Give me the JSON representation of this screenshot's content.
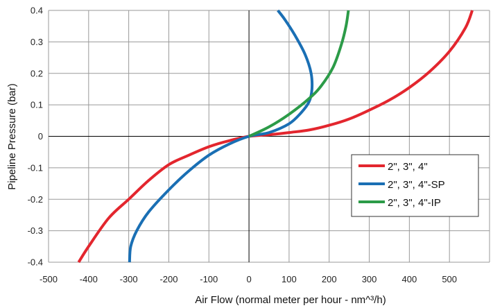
{
  "chart_data": {
    "type": "line",
    "title": "",
    "xlabel": "Air Flow (normal meter per hour - nm^³/h)",
    "ylabel": "Pipeline Pressure (bar)",
    "xlim": [
      -500,
      600
    ],
    "ylim": [
      -0.4,
      0.4
    ],
    "x_ticks": [
      "-500",
      "-400",
      "-300",
      "-200",
      "-100",
      "0",
      "100",
      "200",
      "300",
      "400",
      "500"
    ],
    "y_ticks": [
      "-0.4",
      "-0.3",
      "-0.2",
      "-0.1",
      "0",
      "0.1",
      "0.2",
      "0.3",
      "0.4"
    ],
    "grid": true,
    "legend_position": "right",
    "series": [
      {
        "name": "2\", 3\", 4\"",
        "color": "#e3262e",
        "points": [
          [
            -425,
            -0.4
          ],
          [
            -400,
            -0.35
          ],
          [
            -350,
            -0.26
          ],
          [
            -300,
            -0.2
          ],
          [
            -250,
            -0.14
          ],
          [
            -200,
            -0.09
          ],
          [
            -150,
            -0.06
          ],
          [
            -100,
            -0.033
          ],
          [
            -50,
            -0.014
          ],
          [
            0,
            0
          ],
          [
            50,
            0.005
          ],
          [
            100,
            0.012
          ],
          [
            150,
            0.02
          ],
          [
            200,
            0.035
          ],
          [
            250,
            0.055
          ],
          [
            300,
            0.083
          ],
          [
            350,
            0.115
          ],
          [
            400,
            0.155
          ],
          [
            450,
            0.205
          ],
          [
            500,
            0.27
          ],
          [
            540,
            0.345
          ],
          [
            557,
            0.4
          ]
        ]
      },
      {
        "name": "2\", 3\", 4\"-SP",
        "color": "#1a6fb4",
        "points": [
          [
            -298,
            -0.4
          ],
          [
            -295,
            -0.35
          ],
          [
            -280,
            -0.3
          ],
          [
            -250,
            -0.24
          ],
          [
            -200,
            -0.17
          ],
          [
            -150,
            -0.11
          ],
          [
            -100,
            -0.06
          ],
          [
            -50,
            -0.025
          ],
          [
            0,
            0
          ],
          [
            50,
            0.012
          ],
          [
            100,
            0.04
          ],
          [
            130,
            0.075
          ],
          [
            150,
            0.11
          ],
          [
            157,
            0.15
          ],
          [
            155,
            0.2
          ],
          [
            140,
            0.26
          ],
          [
            115,
            0.32
          ],
          [
            90,
            0.37
          ],
          [
            72,
            0.4
          ]
        ]
      },
      {
        "name": "2\", 3\", 4\"-IP",
        "color": "#2c9b48",
        "points": [
          [
            0,
            0
          ],
          [
            50,
            0.03
          ],
          [
            100,
            0.07
          ],
          [
            150,
            0.12
          ],
          [
            180,
            0.16
          ],
          [
            210,
            0.22
          ],
          [
            230,
            0.29
          ],
          [
            242,
            0.35
          ],
          [
            248,
            0.4
          ]
        ]
      }
    ]
  }
}
